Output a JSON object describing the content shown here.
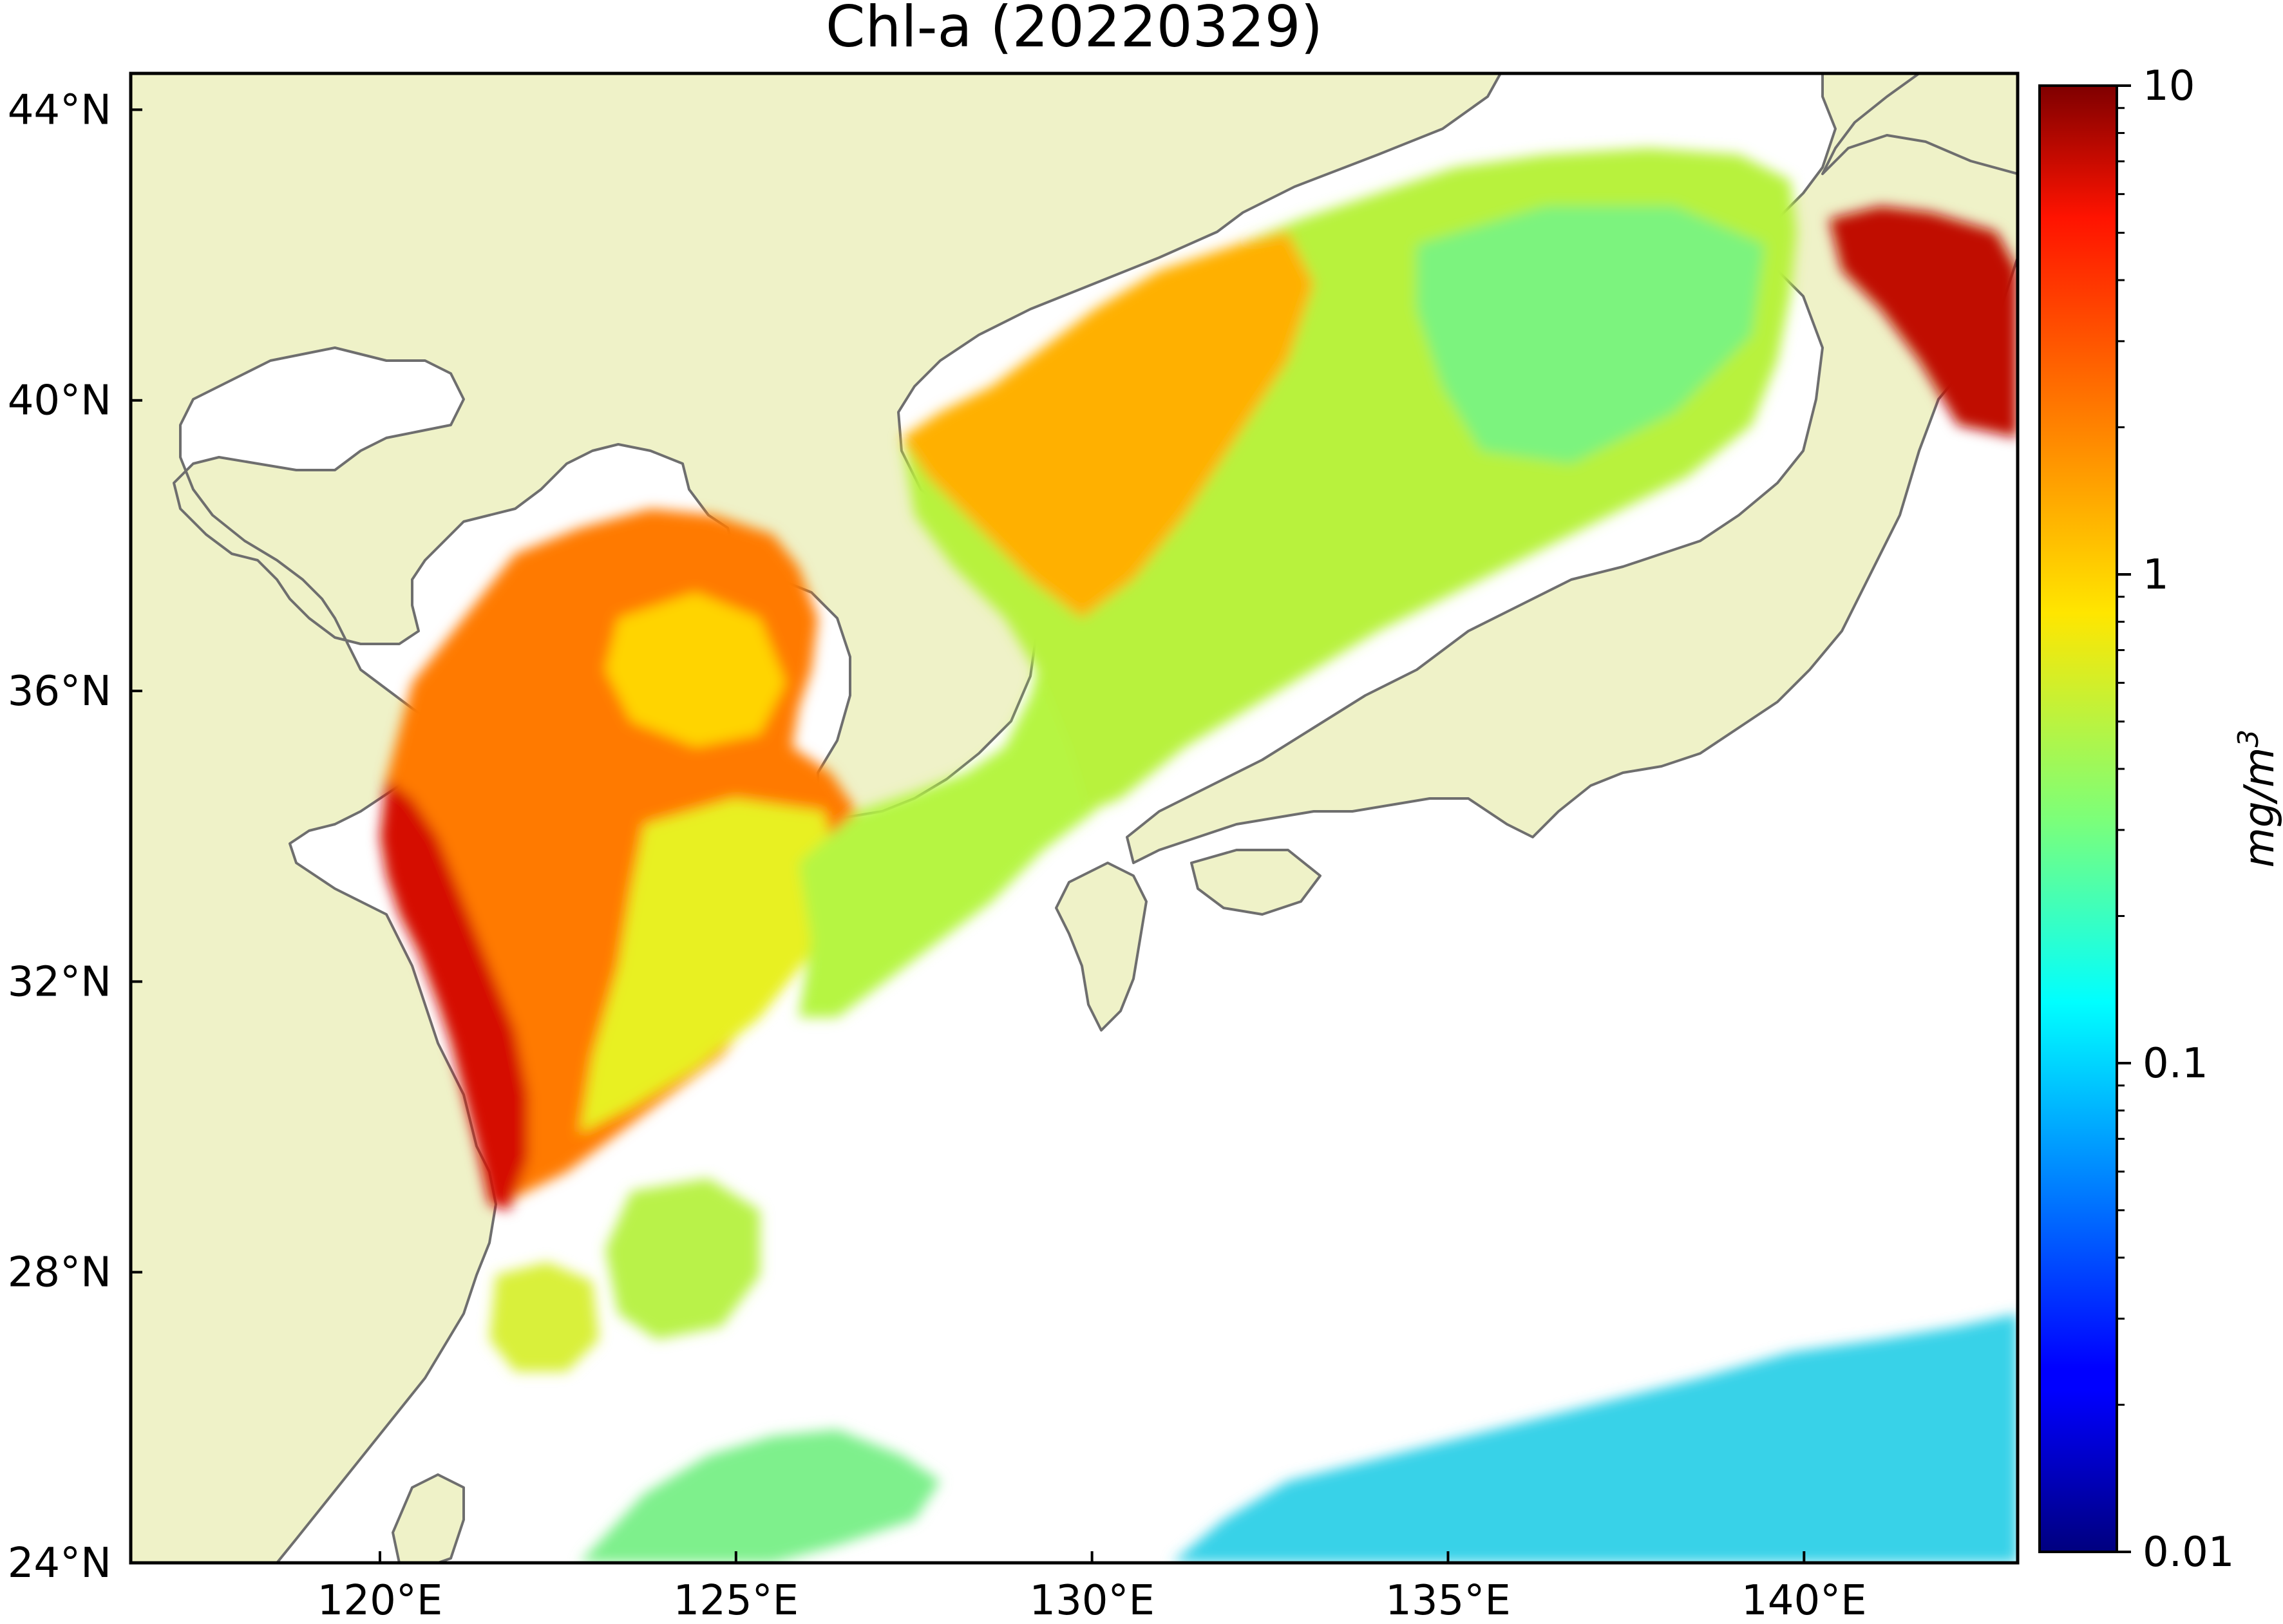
{
  "figure": {
    "title": "Chl-a (20220329)"
  },
  "colors": {
    "land": "#EFF2C8",
    "ocean_nodata": "#FFFFFF",
    "coastline": "#6E6E6E",
    "frame": "#000000"
  },
  "axes": {
    "lat_ticks": [
      "44°N",
      "40°N",
      "36°N",
      "32°N",
      "28°N",
      "24°N"
    ],
    "lon_ticks": [
      "120°E",
      "125°E",
      "130°E",
      "135°E",
      "140°E"
    ],
    "lat_range": [
      24,
      44.5
    ],
    "lon_range": [
      116.5,
      143
    ]
  },
  "colorbar": {
    "label_main": "mg/m",
    "label_sup": "3",
    "scale": "log",
    "colormap": "jet",
    "range": [
      0.01,
      10
    ],
    "ticks": [
      "10",
      "1",
      "0.1",
      "0.01"
    ]
  }
}
